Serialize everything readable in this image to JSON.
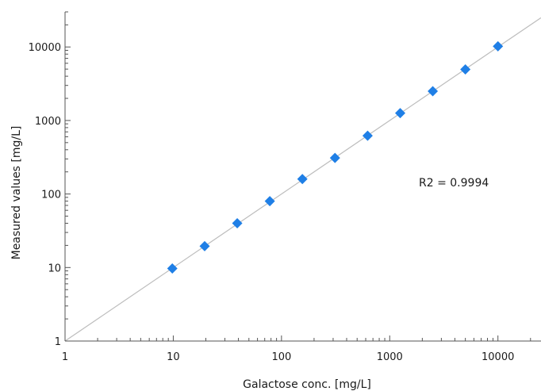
{
  "chart_data": {
    "type": "scatter",
    "title": "",
    "xlabel": "Galactose conc. [mg/L]",
    "ylabel": "Measured values [mg/L]",
    "xscale": "log",
    "yscale": "log",
    "xlim": [
      1,
      25000
    ],
    "ylim": [
      1,
      30000
    ],
    "x_ticks": [
      "1",
      "10",
      "100",
      "1000",
      "10000"
    ],
    "y_ticks": [
      "1",
      "10",
      "100",
      "1000",
      "10000"
    ],
    "grid": false,
    "legend": "none",
    "annotation": "R2 = 0.9994",
    "fit_line": {
      "x": [
        1,
        25000
      ],
      "y": [
        1,
        25000
      ],
      "color": "#bdbdbd"
    },
    "marker_color": "#1f7fe6",
    "series": [
      {
        "x": [
          9.8,
          19.5,
          39,
          78,
          156,
          312,
          625,
          1250,
          2500,
          5000,
          10000
        ],
        "y": [
          9.7,
          19.5,
          40,
          80,
          160,
          310,
          620,
          1260,
          2500,
          4950,
          10200
        ]
      }
    ]
  }
}
